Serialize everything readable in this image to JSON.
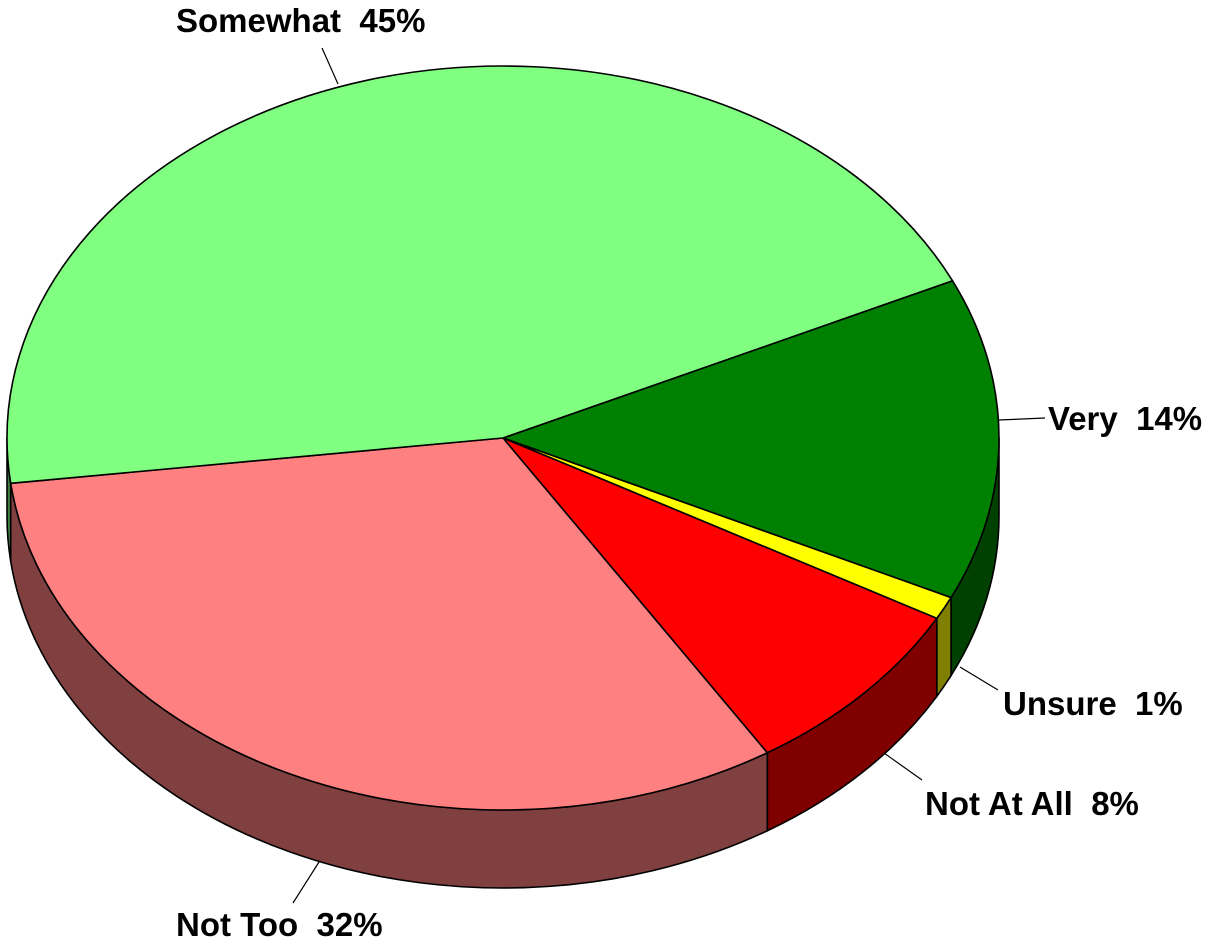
{
  "chart_data": {
    "type": "pie",
    "style": "3d",
    "slices": [
      {
        "label": "Very",
        "value": 14,
        "display": "Very  14%",
        "color": "#008000",
        "side_color": "#004000"
      },
      {
        "label": "Unsure",
        "value": 1,
        "display": "Unsure  1%",
        "color": "#FFFF00",
        "side_color": "#808000"
      },
      {
        "label": "Not At All",
        "value": 8,
        "display": "Not At All  8%",
        "color": "#FF0000",
        "side_color": "#800000"
      },
      {
        "label": "Not Too",
        "value": 32,
        "display": "Not Too  32%",
        "color": "#FF8080",
        "side_color": "#804040"
      },
      {
        "label": "Somewhat",
        "value": 45,
        "display": "Somewhat  45%",
        "color": "#80FF80",
        "side_color": "#408040"
      }
    ]
  }
}
